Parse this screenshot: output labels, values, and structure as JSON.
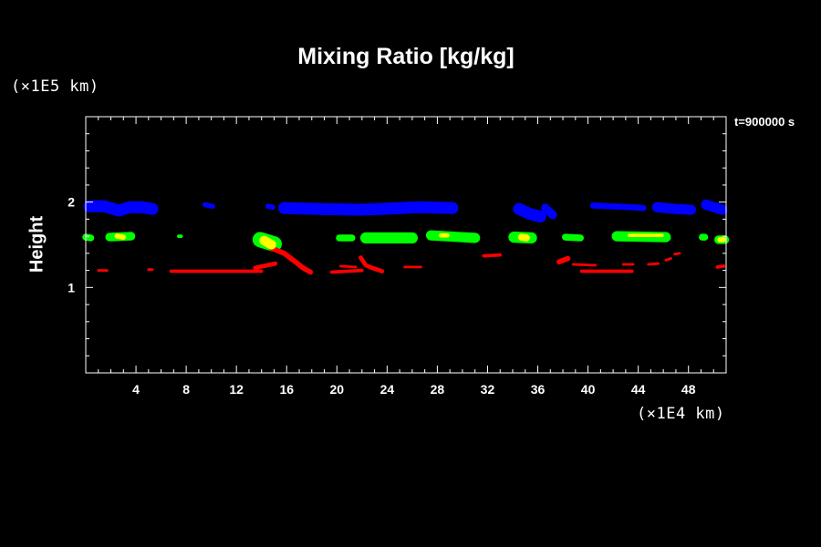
{
  "chart_data": {
    "type": "heatmap",
    "title": "Mixing Ratio [kg/kg]",
    "ylabel": "Height",
    "xlabel": "",
    "x_unit": "(×1E4 km)",
    "y_unit": "(×1E5 km)",
    "time_label": "t=900000 s",
    "xlim": [
      0,
      51
    ],
    "ylim": [
      0,
      3
    ],
    "x_ticks": [
      4,
      8,
      12,
      16,
      20,
      24,
      28,
      32,
      36,
      40,
      44,
      48
    ],
    "y_ticks": [
      1,
      2
    ],
    "colors": {
      "blue": "#0000ff",
      "green": "#00ff00",
      "yellow": "#ffff00",
      "red": "#ff0000"
    },
    "features": [
      {
        "color": "blue",
        "points": [
          [
            0.3,
            1.95
          ],
          [
            1.5,
            1.95
          ],
          [
            2.6,
            1.9
          ],
          [
            3.5,
            1.94
          ],
          [
            4.5,
            1.94
          ],
          [
            5.3,
            1.92
          ]
        ],
        "width": 0.14
      },
      {
        "color": "blue",
        "points": [
          [
            9.5,
            1.97
          ],
          [
            10.1,
            1.95
          ]
        ],
        "width": 0.06
      },
      {
        "color": "blue",
        "points": [
          [
            14.5,
            1.95
          ],
          [
            14.9,
            1.94
          ]
        ],
        "width": 0.06
      },
      {
        "color": "blue",
        "points": [
          [
            15.8,
            1.93
          ],
          [
            18.5,
            1.92
          ],
          [
            21.8,
            1.91
          ],
          [
            23.5,
            1.92
          ],
          [
            26.5,
            1.94
          ],
          [
            29.2,
            1.93
          ]
        ],
        "width": 0.14
      },
      {
        "color": "blue",
        "points": [
          [
            34.5,
            1.92
          ],
          [
            35.4,
            1.86
          ],
          [
            36.2,
            1.83
          ]
        ],
        "width": 0.14
      },
      {
        "color": "blue",
        "points": [
          [
            36.6,
            1.93
          ],
          [
            37.2,
            1.85
          ]
        ],
        "width": 0.1
      },
      {
        "color": "blue",
        "points": [
          [
            40.4,
            1.96
          ],
          [
            43.5,
            1.94
          ],
          [
            44.4,
            1.93
          ]
        ],
        "width": 0.07
      },
      {
        "color": "blue",
        "points": [
          [
            45.5,
            1.94
          ],
          [
            47.0,
            1.92
          ],
          [
            48.2,
            1.91
          ]
        ],
        "width": 0.12
      },
      {
        "color": "blue",
        "points": [
          [
            49.4,
            1.97
          ],
          [
            50.7,
            1.91
          ]
        ],
        "width": 0.12
      },
      {
        "color": "green",
        "points": [
          [
            0.0,
            1.59
          ],
          [
            0.4,
            1.58
          ]
        ],
        "width": 0.08
      },
      {
        "color": "green",
        "points": [
          [
            1.9,
            1.59
          ],
          [
            3.6,
            1.6
          ]
        ],
        "width": 0.1
      },
      {
        "color": "green",
        "points": [
          [
            7.4,
            1.6
          ],
          [
            7.6,
            1.6
          ]
        ],
        "width": 0.04
      },
      {
        "color": "green",
        "points": [
          [
            13.9,
            1.56
          ],
          [
            15.0,
            1.51
          ]
        ],
        "width": 0.18
      },
      {
        "color": "green",
        "points": [
          [
            20.2,
            1.58
          ],
          [
            21.2,
            1.58
          ]
        ],
        "width": 0.08
      },
      {
        "color": "green",
        "points": [
          [
            22.3,
            1.58
          ],
          [
            26.0,
            1.58
          ]
        ],
        "width": 0.13
      },
      {
        "color": "green",
        "points": [
          [
            27.5,
            1.61
          ],
          [
            31.0,
            1.58
          ]
        ],
        "width": 0.12
      },
      {
        "color": "green",
        "points": [
          [
            34.1,
            1.59
          ],
          [
            35.5,
            1.58
          ]
        ],
        "width": 0.13
      },
      {
        "color": "green",
        "points": [
          [
            38.2,
            1.59
          ],
          [
            39.4,
            1.58
          ]
        ],
        "width": 0.08
      },
      {
        "color": "green",
        "points": [
          [
            42.3,
            1.6
          ],
          [
            46.2,
            1.59
          ]
        ],
        "width": 0.12
      },
      {
        "color": "green",
        "points": [
          [
            49.1,
            1.59
          ],
          [
            49.3,
            1.59
          ]
        ],
        "width": 0.08
      },
      {
        "color": "green",
        "points": [
          [
            50.4,
            1.56
          ],
          [
            50.9,
            1.56
          ]
        ],
        "width": 0.1
      },
      {
        "color": "yellow",
        "points": [
          [
            2.5,
            1.6
          ],
          [
            3.0,
            1.59
          ]
        ],
        "width": 0.06
      },
      {
        "color": "yellow",
        "points": [
          [
            14.2,
            1.55
          ],
          [
            14.8,
            1.5
          ]
        ],
        "width": 0.11
      },
      {
        "color": "yellow",
        "points": [
          [
            28.3,
            1.61
          ],
          [
            28.8,
            1.61
          ]
        ],
        "width": 0.05
      },
      {
        "color": "yellow",
        "points": [
          [
            34.7,
            1.59
          ],
          [
            35.1,
            1.58
          ]
        ],
        "width": 0.08
      },
      {
        "color": "yellow",
        "points": [
          [
            43.3,
            1.61
          ],
          [
            45.9,
            1.61
          ]
        ],
        "width": 0.04
      },
      {
        "color": "yellow",
        "points": [
          [
            50.5,
            1.56
          ],
          [
            50.8,
            1.56
          ]
        ],
        "width": 0.06
      },
      {
        "color": "red",
        "points": [
          [
            1.0,
            1.2
          ],
          [
            1.7,
            1.2
          ]
        ],
        "width": 0.03
      },
      {
        "color": "red",
        "points": [
          [
            5.0,
            1.21
          ],
          [
            5.3,
            1.21
          ]
        ],
        "width": 0.03
      },
      {
        "color": "red",
        "points": [
          [
            6.8,
            1.19
          ],
          [
            14.0,
            1.19
          ]
        ],
        "width": 0.04
      },
      {
        "color": "red",
        "points": [
          [
            13.5,
            1.23
          ],
          [
            15.1,
            1.28
          ]
        ],
        "width": 0.05
      },
      {
        "color": "red",
        "points": [
          [
            14.8,
            1.46
          ],
          [
            15.8,
            1.4
          ],
          [
            16.7,
            1.3
          ],
          [
            17.3,
            1.23
          ],
          [
            17.9,
            1.18
          ]
        ],
        "width": 0.06
      },
      {
        "color": "red",
        "points": [
          [
            19.6,
            1.18
          ],
          [
            22.0,
            1.2
          ]
        ],
        "width": 0.04
      },
      {
        "color": "red",
        "points": [
          [
            21.9,
            1.35
          ],
          [
            22.3,
            1.26
          ],
          [
            22.8,
            1.23
          ],
          [
            23.6,
            1.19
          ]
        ],
        "width": 0.05
      },
      {
        "color": "red",
        "points": [
          [
            20.3,
            1.25
          ],
          [
            21.5,
            1.24
          ]
        ],
        "width": 0.03
      },
      {
        "color": "red",
        "points": [
          [
            25.4,
            1.24
          ],
          [
            26.7,
            1.24
          ]
        ],
        "width": 0.03
      },
      {
        "color": "red",
        "points": [
          [
            31.7,
            1.37
          ],
          [
            33.0,
            1.38
          ]
        ],
        "width": 0.04
      },
      {
        "color": "red",
        "points": [
          [
            37.7,
            1.3
          ],
          [
            38.4,
            1.34
          ]
        ],
        "width": 0.06
      },
      {
        "color": "red",
        "points": [
          [
            38.8,
            1.27
          ],
          [
            40.6,
            1.26
          ]
        ],
        "width": 0.03
      },
      {
        "color": "red",
        "points": [
          [
            39.5,
            1.19
          ],
          [
            43.5,
            1.19
          ]
        ],
        "width": 0.04
      },
      {
        "color": "red",
        "points": [
          [
            42.8,
            1.27
          ],
          [
            43.6,
            1.27
          ]
        ],
        "width": 0.03
      },
      {
        "color": "red",
        "points": [
          [
            44.8,
            1.27
          ],
          [
            45.6,
            1.28
          ]
        ],
        "width": 0.03
      },
      {
        "color": "red",
        "points": [
          [
            46.2,
            1.32
          ],
          [
            46.6,
            1.34
          ]
        ],
        "width": 0.03
      },
      {
        "color": "red",
        "points": [
          [
            46.9,
            1.39
          ],
          [
            47.3,
            1.4
          ]
        ],
        "width": 0.03
      },
      {
        "color": "red",
        "points": [
          [
            50.3,
            1.24
          ],
          [
            50.8,
            1.25
          ]
        ],
        "width": 0.04
      }
    ]
  }
}
